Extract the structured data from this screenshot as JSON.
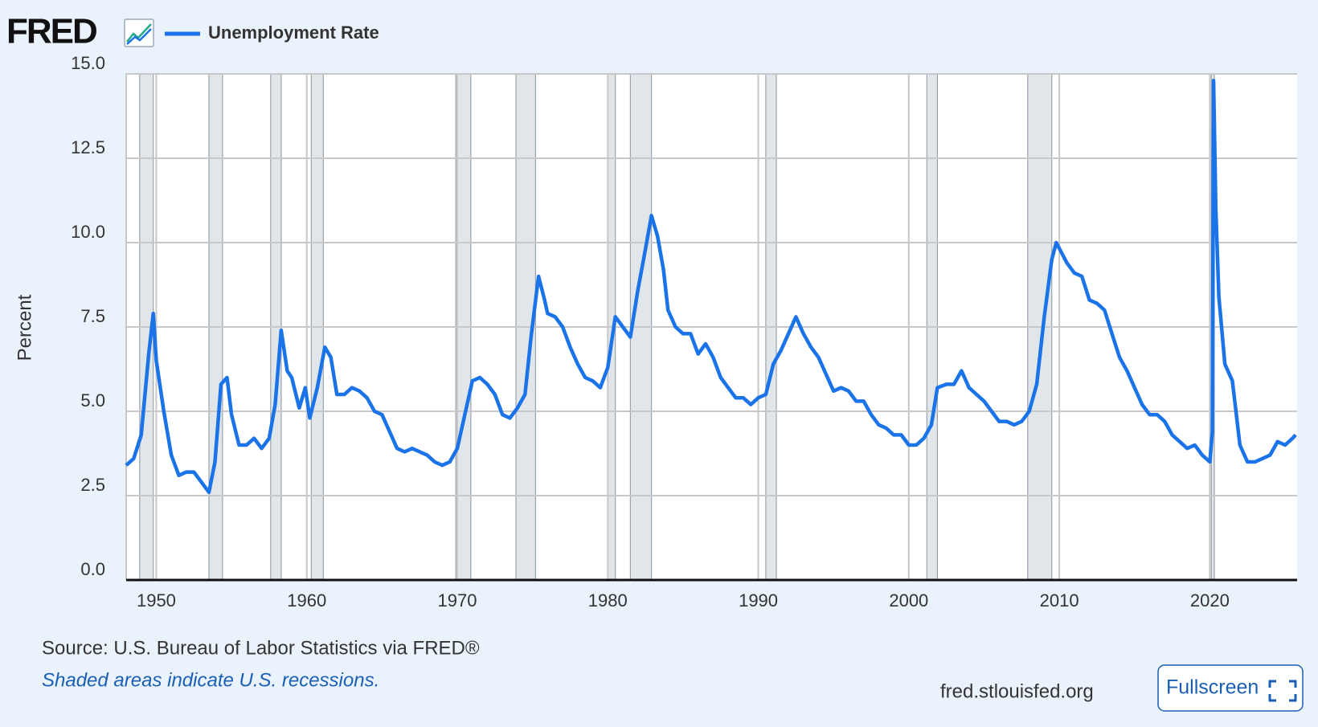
{
  "chart_data": {
    "type": "line",
    "logo": "FRED",
    "ylabel": "Percent",
    "source": "Source: U.S. Bureau of Labor Statistics via FRED®",
    "note": "Shaded areas indicate U.S. recessions.",
    "site": "fred.stlouisfed.org",
    "button": "Fullscreen",
    "xlim": [
      1948,
      2025.8
    ],
    "ylim": [
      0,
      15
    ],
    "xticks": [
      1950,
      1960,
      1970,
      1980,
      1990,
      2000,
      2010,
      2020
    ],
    "yticks": [
      {
        "value": 0,
        "label": "0.0"
      },
      2.5,
      {
        "value": 5,
        "label": "5.0"
      },
      7.5,
      {
        "value": 10,
        "label": "10.0"
      },
      12.5,
      {
        "value": 15,
        "label": "15.0"
      }
    ],
    "grid": true,
    "recessions": [
      [
        1948.9,
        1949.8
      ],
      [
        1953.5,
        1954.4
      ],
      [
        1957.6,
        1958.3
      ],
      [
        1960.3,
        1961.1
      ],
      [
        1969.9,
        1970.9
      ],
      [
        1973.9,
        1975.2
      ],
      [
        1980.0,
        1980.5
      ],
      [
        1981.5,
        1982.9
      ],
      [
        1990.5,
        1991.2
      ],
      [
        2001.2,
        2001.9
      ],
      [
        2007.9,
        2009.5
      ],
      [
        2020.1,
        2020.3
      ]
    ],
    "x": [
      1948,
      1948.5,
      1949,
      1949.5,
      1949.8,
      1950,
      1950.5,
      1951,
      1951.5,
      1952,
      1952.5,
      1953,
      1953.5,
      1953.9,
      1954.3,
      1954.7,
      1955,
      1955.5,
      1956,
      1956.5,
      1957,
      1957.5,
      1957.9,
      1958.3,
      1958.7,
      1959,
      1959.5,
      1959.9,
      1960.2,
      1960.7,
      1961.2,
      1961.6,
      1962,
      1962.5,
      1963,
      1963.5,
      1964,
      1964.5,
      1965,
      1965.5,
      1966,
      1966.5,
      1967,
      1967.5,
      1968,
      1968.5,
      1969,
      1969.5,
      1970,
      1970.5,
      1971,
      1971.5,
      1972,
      1972.5,
      1973,
      1973.5,
      1974,
      1974.5,
      1974.9,
      1975.4,
      1975.8,
      1976,
      1976.5,
      1977,
      1977.5,
      1978,
      1978.5,
      1979,
      1979.5,
      1980,
      1980.5,
      1981,
      1981.5,
      1982,
      1982.5,
      1982.9,
      1983.3,
      1983.7,
      1984,
      1984.5,
      1985,
      1985.5,
      1986,
      1986.5,
      1987,
      1987.5,
      1988,
      1988.5,
      1989,
      1989.5,
      1990,
      1990.5,
      1991,
      1991.5,
      1992,
      1992.5,
      1993,
      1993.5,
      1994,
      1994.5,
      1995,
      1995.5,
      1996,
      1996.5,
      1997,
      1997.5,
      1998,
      1998.5,
      1999,
      1999.5,
      2000,
      2000.5,
      2001,
      2001.5,
      2001.9,
      2002.5,
      2003,
      2003.5,
      2004,
      2004.5,
      2005,
      2005.5,
      2006,
      2006.5,
      2007,
      2007.5,
      2008,
      2008.5,
      2009,
      2009.5,
      2009.8,
      2010.5,
      2011,
      2011.5,
      2012,
      2012.5,
      2013,
      2013.5,
      2014,
      2014.5,
      2015,
      2015.5,
      2016,
      2016.5,
      2017,
      2017.5,
      2018,
      2018.5,
      2019,
      2019.5,
      2020,
      2020.17,
      2020.25,
      2020.4,
      2020.6,
      2021,
      2021.5,
      2022,
      2022.5,
      2023,
      2023.5,
      2024,
      2024.5,
      2025,
      2025.5,
      2025.7
    ],
    "series": [
      {
        "name": "Unemployment Rate",
        "color": "#1a73e8",
        "values": [
          3.4,
          3.6,
          4.3,
          6.7,
          7.9,
          6.5,
          5.0,
          3.7,
          3.1,
          3.2,
          3.2,
          2.9,
          2.6,
          3.5,
          5.8,
          6.0,
          4.9,
          4.0,
          4.0,
          4.2,
          3.9,
          4.2,
          5.2,
          7.4,
          6.2,
          6.0,
          5.1,
          5.7,
          4.8,
          5.7,
          6.9,
          6.6,
          5.5,
          5.5,
          5.7,
          5.6,
          5.4,
          5.0,
          4.9,
          4.4,
          3.9,
          3.8,
          3.9,
          3.8,
          3.7,
          3.5,
          3.4,
          3.5,
          3.9,
          4.9,
          5.9,
          6.0,
          5.8,
          5.5,
          4.9,
          4.8,
          5.1,
          5.5,
          7.2,
          9.0,
          8.3,
          7.9,
          7.8,
          7.5,
          6.9,
          6.4,
          6.0,
          5.9,
          5.7,
          6.3,
          7.8,
          7.5,
          7.2,
          8.6,
          9.8,
          10.8,
          10.2,
          9.2,
          8.0,
          7.5,
          7.3,
          7.3,
          6.7,
          7.0,
          6.6,
          6.0,
          5.7,
          5.4,
          5.4,
          5.2,
          5.4,
          5.5,
          6.4,
          6.8,
          7.3,
          7.8,
          7.3,
          6.9,
          6.6,
          6.1,
          5.6,
          5.7,
          5.6,
          5.3,
          5.3,
          4.9,
          4.6,
          4.5,
          4.3,
          4.3,
          4.0,
          4.0,
          4.2,
          4.6,
          5.7,
          5.8,
          5.8,
          6.2,
          5.7,
          5.5,
          5.3,
          5.0,
          4.7,
          4.7,
          4.6,
          4.7,
          5.0,
          5.8,
          7.8,
          9.5,
          10.0,
          9.4,
          9.1,
          9.0,
          8.3,
          8.2,
          8.0,
          7.3,
          6.6,
          6.2,
          5.7,
          5.2,
          4.9,
          4.9,
          4.7,
          4.3,
          4.1,
          3.9,
          4.0,
          3.7,
          3.5,
          4.4,
          14.8,
          11.0,
          8.4,
          6.4,
          5.9,
          4.0,
          3.5,
          3.5,
          3.6,
          3.7,
          4.1,
          4.0,
          4.2,
          4.3
        ]
      }
    ]
  }
}
